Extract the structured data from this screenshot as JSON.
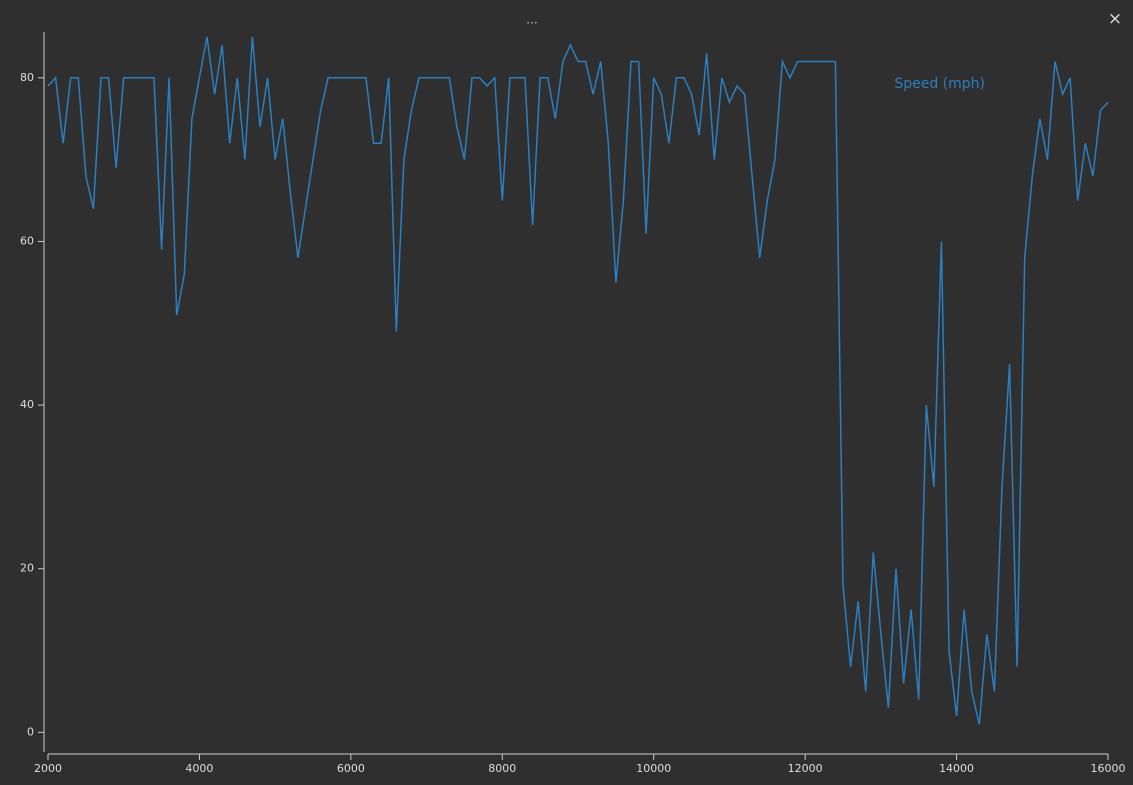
{
  "ui": {
    "drag_handle": "...",
    "close": "×"
  },
  "chart_data": {
    "type": "line",
    "series": [
      {
        "name": "Speed (mph)",
        "color": "#2b7fc0",
        "values": [
          79,
          80,
          72,
          80,
          80,
          68,
          64,
          80,
          80,
          69,
          80,
          80,
          80,
          80,
          80,
          59,
          80,
          51,
          56,
          75,
          80,
          85,
          78,
          84,
          72,
          80,
          70,
          85,
          74,
          80,
          70,
          75,
          66,
          58,
          64,
          70,
          76,
          80,
          80,
          80,
          80,
          80,
          80,
          72,
          72,
          80,
          49,
          70,
          76,
          80,
          80,
          80,
          80,
          80,
          74,
          70,
          80,
          80,
          79,
          80,
          65,
          80,
          80,
          80,
          62,
          80,
          80,
          75,
          82,
          84,
          82,
          82,
          78,
          82,
          72,
          55,
          65,
          82,
          82,
          61,
          80,
          78,
          72,
          80,
          80,
          78,
          73,
          83,
          70,
          80,
          77,
          79,
          78,
          68,
          58,
          65,
          70,
          82,
          80,
          82,
          82,
          82,
          82,
          82,
          82,
          18,
          8,
          16,
          5,
          22,
          12,
          3,
          20,
          6,
          15,
          4,
          40,
          30,
          60,
          10,
          2,
          15,
          5,
          1,
          12,
          5,
          30,
          45,
          8,
          58,
          68,
          75,
          70,
          82,
          78,
          80,
          65,
          72,
          68,
          76,
          77
        ]
      }
    ],
    "x": [
      2000,
      2100,
      2200,
      2300,
      2400,
      2500,
      2600,
      2700,
      2800,
      2900,
      3000,
      3100,
      3200,
      3300,
      3400,
      3500,
      3600,
      3700,
      3800,
      3900,
      4000,
      4100,
      4200,
      4300,
      4400,
      4500,
      4600,
      4700,
      4800,
      4900,
      5000,
      5100,
      5200,
      5300,
      5400,
      5500,
      5600,
      5700,
      5800,
      5900,
      6000,
      6100,
      6200,
      6300,
      6400,
      6500,
      6600,
      6700,
      6800,
      6900,
      7000,
      7100,
      7200,
      7300,
      7400,
      7500,
      7600,
      7700,
      7800,
      7900,
      8000,
      8100,
      8200,
      8300,
      8400,
      8500,
      8600,
      8700,
      8800,
      8900,
      9000,
      9100,
      9200,
      9300,
      9400,
      9500,
      9600,
      9700,
      9800,
      9900,
      10000,
      10100,
      10200,
      10300,
      10400,
      10500,
      10600,
      10700,
      10800,
      10900,
      11000,
      11100,
      11200,
      11300,
      11400,
      11500,
      11600,
      11700,
      11800,
      11900,
      12000,
      12100,
      12200,
      12300,
      12400,
      12500,
      12600,
      12700,
      12800,
      12900,
      13000,
      13100,
      13200,
      13300,
      13400,
      13500,
      13600,
      13700,
      13800,
      13900,
      14000,
      14100,
      14200,
      14300,
      14400,
      14500,
      14600,
      14700,
      14800,
      14900,
      15000,
      15100,
      15200,
      15300,
      15400,
      15500,
      15600,
      15700,
      15800,
      15900,
      16000
    ],
    "xlim": [
      2000,
      16000
    ],
    "xticks": [
      2000,
      4000,
      6000,
      8000,
      10000,
      12000,
      14000,
      16000
    ],
    "ylim": [
      -2.4,
      85.6
    ],
    "yticks": [
      0,
      20,
      40,
      60,
      80
    ],
    "legend": "top-right"
  }
}
